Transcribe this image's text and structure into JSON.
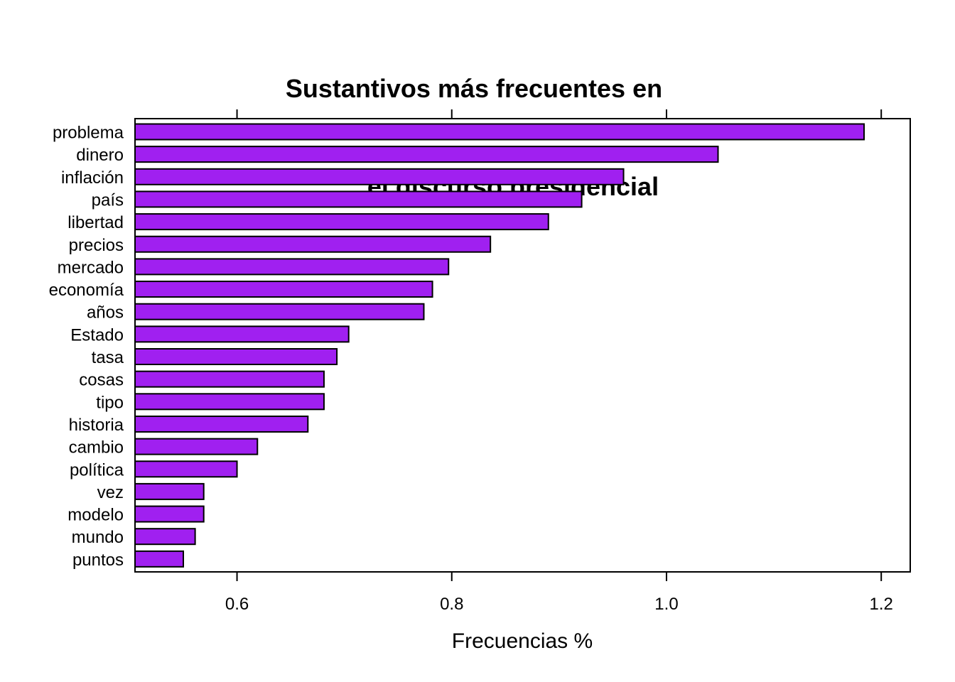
{
  "chart_data": {
    "type": "bar",
    "orientation": "horizontal",
    "title_lines": [
      "Sustantivos más frecuentes en",
      "el discurso presidencial"
    ],
    "xlabel": "Frecuencias %",
    "ylabel": "",
    "categories": [
      "problema",
      "dinero",
      "inflación",
      "país",
      "libertad",
      "precios",
      "mercado",
      "economía",
      "años",
      "Estado",
      "tasa",
      "cosas",
      "tipo",
      "historia",
      "cambio",
      "política",
      "vez",
      "modelo",
      "mundo",
      "puntos"
    ],
    "values": [
      1.184,
      1.048,
      0.96,
      0.921,
      0.89,
      0.836,
      0.797,
      0.782,
      0.774,
      0.704,
      0.693,
      0.681,
      0.681,
      0.666,
      0.619,
      0.6,
      0.569,
      0.569,
      0.561,
      0.55
    ],
    "xlim": [
      0.505,
      1.227
    ],
    "xticks": [
      0.6,
      0.8,
      1.0,
      1.2
    ],
    "xtick_labels": [
      "0.6",
      "0.8",
      "1.0",
      "1.2"
    ],
    "bar_color": "#A020F0",
    "grid": false,
    "legend": "none"
  }
}
